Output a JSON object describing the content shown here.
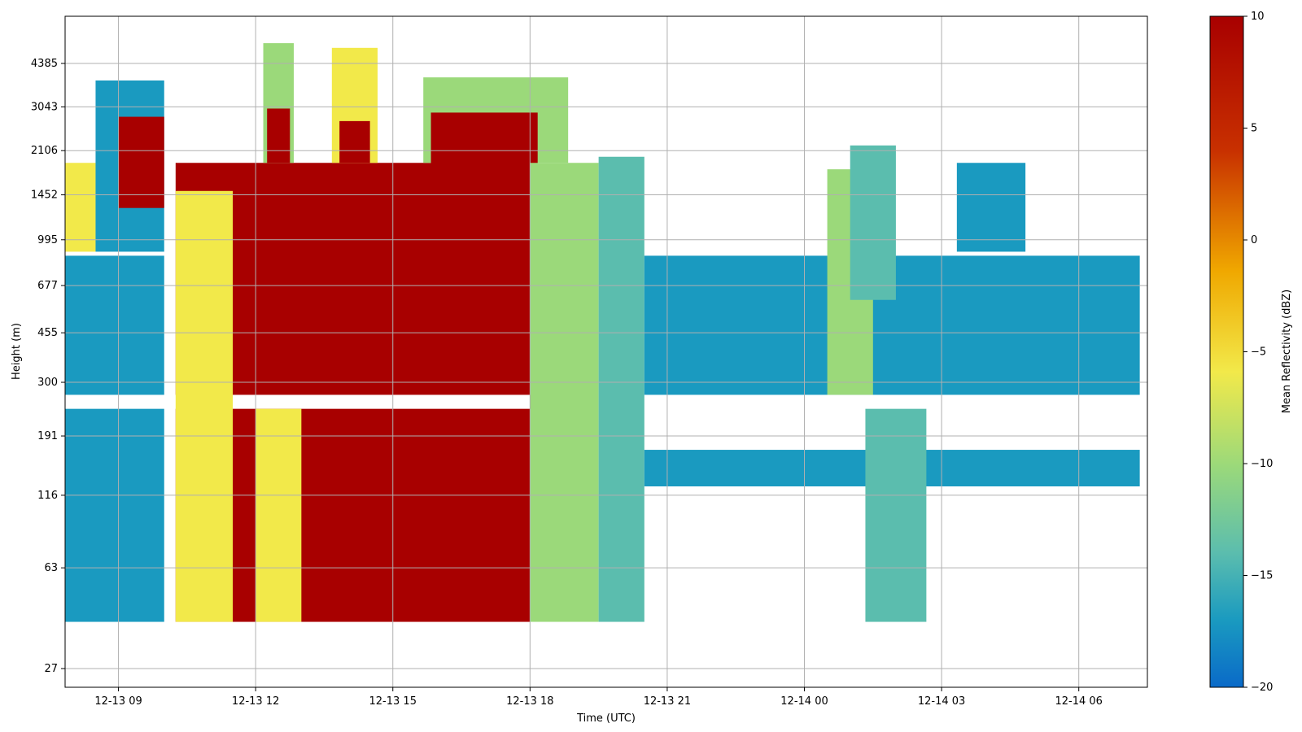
{
  "chart_data": {
    "type": "heatmap",
    "xlabel": "Time (UTC)",
    "ylabel": "Height (m)",
    "colorbar_label": "Mean Reflectivity (dBZ)",
    "colorbar_ticks": [
      "10",
      "5",
      "0",
      "−5",
      "−10",
      "−15",
      "−20"
    ],
    "colorbar_range": [
      -20,
      10
    ],
    "grid": true,
    "x_range": [
      "2013-12-13 07:50",
      "2013-12-14 07:30"
    ],
    "x_ticks": [
      {
        "time": "2013-12-13 09:00",
        "label": "12-13 09"
      },
      {
        "time": "2013-12-13 12:00",
        "label": "12-13 12"
      },
      {
        "time": "2013-12-13 15:00",
        "label": "12-13 15"
      },
      {
        "time": "2013-12-13 18:00",
        "label": "12-13 18"
      },
      {
        "time": "2013-12-13 21:00",
        "label": "12-13 21"
      },
      {
        "time": "2013-12-14 00:00",
        "label": "12-14 00"
      },
      {
        "time": "2013-12-14 03:00",
        "label": "12-14 03"
      },
      {
        "time": "2013-12-14 06:00",
        "label": "12-14 06"
      }
    ],
    "y_scale": "log",
    "y_ticks": [
      {
        "value": 27,
        "label": "27"
      },
      {
        "value": 63,
        "label": "63"
      },
      {
        "value": 116,
        "label": "116"
      },
      {
        "value": 191,
        "label": "191"
      },
      {
        "value": 300,
        "label": "300"
      },
      {
        "value": 455,
        "label": "455"
      },
      {
        "value": 677,
        "label": "677"
      },
      {
        "value": 995,
        "label": "995"
      },
      {
        "value": 1452,
        "label": "1452"
      },
      {
        "value": 2106,
        "label": "2106"
      },
      {
        "value": 3043,
        "label": "3043"
      },
      {
        "value": 4385,
        "label": "4385"
      }
    ],
    "colormap": [
      "#0a6ac8",
      "#1a9ac0",
      "#5bbdae",
      "#9bd97a",
      "#f2e94a",
      "#f0a800",
      "#c83000",
      "#a80000"
    ],
    "regions": [
      {
        "from": "2013-12-13 07:50",
        "to": "2013-12-13 10:00",
        "bottom": 40,
        "top": 240,
        "dbz": -15.5
      },
      {
        "from": "2013-12-13 07:50",
        "to": "2013-12-13 10:00",
        "bottom": 270,
        "top": 870,
        "dbz": -15
      },
      {
        "from": "2013-12-13 07:50",
        "to": "2013-12-13 08:30",
        "bottom": 900,
        "top": 1900,
        "dbz": -5
      },
      {
        "from": "2013-12-13 08:30",
        "to": "2013-12-13 10:00",
        "bottom": 900,
        "top": 3800,
        "dbz": -14
      },
      {
        "from": "2013-12-13 09:00",
        "to": "2013-12-13 10:00",
        "bottom": 1300,
        "top": 2800,
        "dbz": 8
      },
      {
        "from": "2013-12-13 10:15",
        "to": "2013-12-13 18:00",
        "bottom": 40,
        "top": 240,
        "dbz": 9
      },
      {
        "from": "2013-12-13 10:15",
        "to": "2013-12-13 18:00",
        "bottom": 270,
        "top": 1900,
        "dbz": 9
      },
      {
        "from": "2013-12-13 10:15",
        "to": "2013-12-13 11:30",
        "bottom": 40,
        "top": 1500,
        "dbz": -2
      },
      {
        "from": "2013-12-13 12:00",
        "to": "2013-12-13 13:00",
        "bottom": 40,
        "top": 240,
        "dbz": -4
      },
      {
        "from": "2013-12-13 12:10",
        "to": "2013-12-13 12:50",
        "bottom": 1900,
        "top": 5200,
        "dbz": -6
      },
      {
        "from": "2013-12-13 12:15",
        "to": "2013-12-13 12:45",
        "bottom": 1900,
        "top": 3000,
        "dbz": 8
      },
      {
        "from": "2013-12-13 13:40",
        "to": "2013-12-13 14:40",
        "bottom": 1900,
        "top": 5000,
        "dbz": -3
      },
      {
        "from": "2013-12-13 13:50",
        "to": "2013-12-13 14:30",
        "bottom": 1900,
        "top": 2700,
        "dbz": 8
      },
      {
        "from": "2013-12-13 15:40",
        "to": "2013-12-13 18:50",
        "bottom": 1900,
        "top": 3900,
        "dbz": -8
      },
      {
        "from": "2013-12-13 15:50",
        "to": "2013-12-13 18:10",
        "bottom": 900,
        "top": 2900,
        "dbz": 8
      },
      {
        "from": "2013-12-13 18:00",
        "to": "2013-12-13 19:30",
        "bottom": 40,
        "top": 1900,
        "dbz": -6
      },
      {
        "from": "2013-12-13 19:30",
        "to": "2013-12-13 20:30",
        "bottom": 40,
        "top": 2000,
        "dbz": -11
      },
      {
        "from": "2013-12-13 20:30",
        "to": "2013-12-14 07:20",
        "bottom": 125,
        "top": 170,
        "dbz": -15.5
      },
      {
        "from": "2013-12-13 20:30",
        "to": "2013-12-14 07:20",
        "bottom": 270,
        "top": 870,
        "dbz": -16
      },
      {
        "from": "2013-12-14 00:30",
        "to": "2013-12-14 01:30",
        "bottom": 270,
        "top": 1800,
        "dbz": -8
      },
      {
        "from": "2013-12-14 01:20",
        "to": "2013-12-14 02:40",
        "bottom": 40,
        "top": 240,
        "dbz": -11
      },
      {
        "from": "2013-12-14 01:00",
        "to": "2013-12-14 02:00",
        "bottom": 600,
        "top": 2200,
        "dbz": -9
      },
      {
        "from": "2013-12-14 03:20",
        "to": "2013-12-14 04:50",
        "bottom": 900,
        "top": 1900,
        "dbz": -15.5
      }
    ]
  }
}
